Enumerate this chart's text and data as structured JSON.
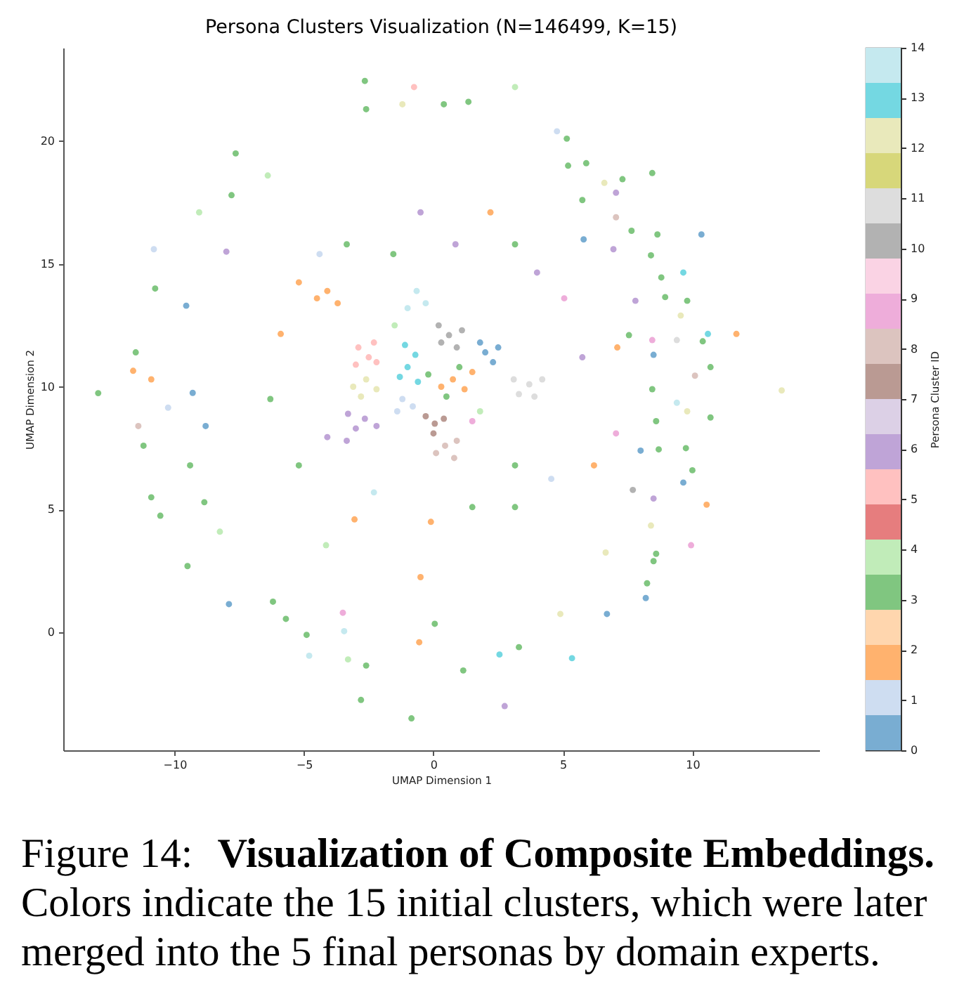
{
  "chart_data": {
    "type": "scatter",
    "title": "Persona Clusters Visualization (N=146499, K=15)",
    "xlabel": "UMAP Dimension 1",
    "ylabel": "UMAP Dimension 2",
    "clabel": "Persona Cluster ID",
    "x": [
      -12.95,
      -7.64,
      -10.8,
      -9.05,
      -10.75,
      -9.55,
      -11.5,
      -11.6,
      -10.9,
      -11.4,
      -11.2,
      -10.9,
      -10.55,
      -9.5,
      -7.9,
      -9.4,
      -10.25,
      -9.3,
      -7.8,
      -8.0,
      -8.85,
      -8.25,
      -6.4,
      -8.8,
      -4.9,
      -4.8,
      -2.8,
      -0.85,
      2.75,
      1.15,
      3.3,
      2.55,
      -0.55,
      4.9,
      -3.45,
      -3.3,
      -2.6,
      -6.2,
      -5.7,
      -3.5,
      -0.5,
      0.05,
      -4.15,
      -2.65,
      -0.75,
      3.15,
      -2.6,
      -1.2,
      0.4,
      1.35,
      0.85,
      4.55,
      3.15,
      1.5,
      -0.1,
      -2.3,
      -3.05,
      -5.2,
      -6.3,
      -5.9,
      -5.2,
      -4.4,
      -3.35,
      -1.55,
      -0.5,
      2.2,
      3.15,
      4.0,
      -4.1,
      -3.35,
      3.15,
      4.77,
      5.15,
      5.2,
      5.9,
      8.45,
      7.3,
      6.6,
      7.05,
      5.75,
      7.05,
      10.35,
      8.65,
      7.65,
      5.8,
      6.95,
      8.4,
      8.8,
      9.65,
      9.8,
      8.95,
      5.05,
      7.8,
      9.55,
      11.7,
      10.6,
      10.4,
      9.4,
      8.45,
      7.55,
      5.75,
      7.1,
      8.5,
      10.7,
      10.1,
      13.45,
      8.45,
      9.4,
      10.7,
      9.8,
      8.6,
      7.05,
      9.75,
      8.7,
      8.0,
      6.2,
      10.0,
      9.65,
      7.7,
      10.55,
      8.5,
      8.4,
      6.65,
      9.95,
      8.6,
      8.5,
      8.25,
      8.2,
      6.7,
      5.35,
      -2.5,
      -2.9,
      -2.2,
      -3.0,
      -2.3,
      -2.6,
      -3.1,
      -2.2,
      -2.8,
      -1.0,
      -0.7,
      -1.3,
      -0.6,
      -1.1,
      0.6,
      0.2,
      1.1,
      0.9,
      0.3,
      2.0,
      2.3,
      1.8,
      2.5,
      3.7,
      3.3,
      4.2,
      3.9,
      3.1,
      -1.2,
      -0.8,
      -1.4,
      -2.65,
      -3.0,
      -2.2,
      -3.3,
      0.05,
      -0.3,
      0.4,
      0.0,
      0.45,
      0.8,
      0.1,
      0.9,
      0.75,
      1.2,
      0.3,
      1.5,
      0.5,
      1.0,
      -0.2,
      -0.65,
      -0.3,
      -1.0,
      -4.1,
      -3.7,
      -4.5,
      -1.5,
      1.8,
      1.5
    ],
    "values": [
      9.74,
      19.5,
      15.6,
      17.1,
      14.0,
      13.3,
      11.4,
      10.65,
      10.3,
      8.4,
      7.6,
      5.5,
      4.75,
      2.7,
      1.15,
      6.8,
      9.15,
      9.75,
      17.8,
      15.5,
      5.3,
      4.1,
      18.6,
      8.4,
      -0.1,
      -0.95,
      -2.75,
      -3.5,
      -3.0,
      -1.55,
      -0.6,
      -0.9,
      -0.4,
      0.75,
      0.05,
      -1.1,
      -1.35,
      1.25,
      0.55,
      0.8,
      2.25,
      0.35,
      3.55,
      22.45,
      22.2,
      22.2,
      21.3,
      21.5,
      21.5,
      21.6,
      15.8,
      6.25,
      6.8,
      5.1,
      4.5,
      5.7,
      4.6,
      6.8,
      9.5,
      12.15,
      14.25,
      15.4,
      15.8,
      15.4,
      17.1,
      17.1,
      15.8,
      14.65,
      7.95,
      7.8,
      5.1,
      20.4,
      20.1,
      19.0,
      19.1,
      18.7,
      18.45,
      18.3,
      17.9,
      17.6,
      16.9,
      16.2,
      16.2,
      16.35,
      16.0,
      15.6,
      15.35,
      14.45,
      14.65,
      13.5,
      13.65,
      13.6,
      13.5,
      12.9,
      12.15,
      12.15,
      11.85,
      11.9,
      11.9,
      12.1,
      11.2,
      11.6,
      11.3,
      10.8,
      10.45,
      9.85,
      9.9,
      9.35,
      8.75,
      9.0,
      8.6,
      8.1,
      7.5,
      7.45,
      7.4,
      6.8,
      6.6,
      6.1,
      5.8,
      5.2,
      5.45,
      4.35,
      3.25,
      3.55,
      3.2,
      2.9,
      2.0,
      1.4,
      0.75,
      -1.05,
      11.2,
      11.6,
      11.0,
      10.9,
      11.8,
      10.3,
      10.0,
      9.9,
      9.6,
      10.8,
      11.3,
      10.4,
      10.2,
      11.7,
      12.1,
      12.5,
      12.3,
      11.6,
      11.8,
      11.4,
      11.0,
      11.8,
      11.6,
      10.1,
      9.7,
      10.3,
      9.6,
      10.3,
      9.5,
      9.2,
      9.0,
      8.7,
      8.3,
      8.4,
      8.9,
      8.5,
      8.8,
      8.7,
      8.1,
      7.6,
      7.1,
      7.3,
      7.8,
      10.3,
      9.9,
      10.0,
      10.6,
      9.6,
      10.8,
      10.5,
      13.9,
      13.4,
      13.2,
      13.9,
      13.4,
      13.6,
      12.5,
      9.0,
      8.6
    ],
    "cvalues": [
      3,
      3,
      1,
      4,
      3,
      0,
      3,
      2,
      2,
      8,
      3,
      3,
      3,
      3,
      0,
      3,
      1,
      0,
      3,
      6,
      3,
      4,
      4,
      0,
      3,
      14,
      3,
      3,
      6,
      3,
      3,
      13,
      2,
      12,
      14,
      4,
      3,
      3,
      3,
      9,
      2,
      3,
      4,
      3,
      5,
      4,
      3,
      12,
      3,
      3,
      6,
      1,
      3,
      3,
      2,
      14,
      2,
      3,
      3,
      2,
      2,
      1,
      3,
      3,
      6,
      2,
      3,
      6,
      6,
      6,
      3,
      1,
      3,
      3,
      3,
      3,
      3,
      12,
      6,
      3,
      8,
      0,
      3,
      3,
      0,
      6,
      3,
      3,
      13,
      3,
      3,
      9,
      6,
      12,
      2,
      13,
      3,
      11,
      9,
      3,
      6,
      2,
      0,
      3,
      8,
      12,
      3,
      14,
      3,
      12,
      3,
      9,
      3,
      3,
      0,
      2,
      3,
      0,
      10,
      2,
      6,
      12,
      12,
      9,
      3,
      3,
      3,
      0,
      0,
      13,
      5,
      5,
      5,
      5,
      5,
      12,
      12,
      12,
      12,
      13,
      13,
      13,
      13,
      13,
      10,
      10,
      10,
      10,
      10,
      0,
      0,
      0,
      0,
      11,
      11,
      11,
      11,
      11,
      1,
      1,
      1,
      6,
      6,
      6,
      6,
      7,
      7,
      7,
      7,
      8,
      8,
      8,
      8,
      2,
      2,
      2,
      2,
      3,
      3,
      3,
      14,
      14,
      14,
      2,
      2,
      2,
      4,
      4,
      9
    ],
    "xlim": [
      -14.3,
      14.9
    ],
    "ylim": [
      -4.8,
      23.8
    ],
    "xticks": [
      -10,
      -5,
      0,
      5,
      10
    ],
    "yticks": [
      0,
      5,
      10,
      15,
      20
    ],
    "clim": [
      0,
      14
    ],
    "cticks": [
      0,
      1,
      2,
      3,
      4,
      5,
      6,
      7,
      8,
      9,
      10,
      11,
      12,
      13,
      14
    ],
    "marker": "circle",
    "annotations": [
      "Figure 14:",
      "Visualization of Composite Embeddings.",
      "Colors indicate the 15 initial clusters, which were later merged into the 5 final personas by domain experts."
    ]
  }
}
